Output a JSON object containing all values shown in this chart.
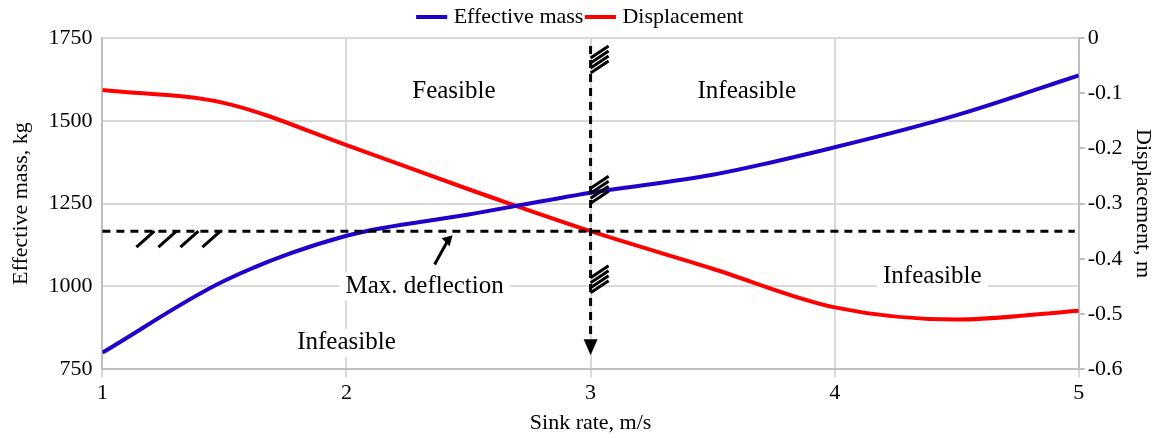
{
  "chart_data": {
    "type": "line",
    "xlabel": "Sink rate, m/s",
    "ylabel": "Effective mass, kg",
    "y2label": "Displacement, m",
    "x": [
      1,
      1.5,
      2,
      2.5,
      3,
      3.5,
      4,
      4.5,
      5
    ],
    "series": [
      {
        "name": "Effective mass",
        "color": "#2200cc",
        "values": [
          800,
          1017,
          1153,
          1217,
          1283,
          1337,
          1420,
          1517,
          1637
        ]
      },
      {
        "name": "Displacement",
        "color": "#ff0000",
        "axis": "y2",
        "values": [
          -0.094,
          -0.118,
          -0.194,
          -0.274,
          -0.35,
          -0.418,
          -0.488,
          -0.51,
          -0.494
        ]
      }
    ],
    "xlim": [
      1,
      5
    ],
    "xticks": [
      1,
      2,
      3,
      4,
      5
    ],
    "ylim": [
      750,
      1750
    ],
    "yticks": [
      750,
      1000,
      1250,
      1500,
      1750
    ],
    "y2lim": [
      -0.6,
      0
    ],
    "y2ticks": [
      -0.6,
      -0.5,
      -0.4,
      -0.3,
      -0.2,
      -0.1,
      0
    ],
    "ref_lines": [
      {
        "axis": "y2",
        "value": -0.35,
        "color": "#000000",
        "line_style": "dashed"
      },
      {
        "axis": "x",
        "value": 3,
        "color": "#000000",
        "line_style": "dashed"
      }
    ],
    "annotations": [
      "Feasible",
      "Infeasible",
      "Infeasible",
      "Infeasible",
      "Max. deflection"
    ],
    "grid": true,
    "legend": "top",
    "marker": "none",
    "line_style": "solid"
  }
}
